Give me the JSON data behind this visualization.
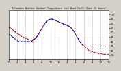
{
  "title": "Milwaukee Weather Outdoor Temperature (vs) Wind Chill (Last 24 Hours)",
  "background_color": "#d4d0c8",
  "plot_bg_color": "#ffffff",
  "xlim": [
    0,
    24
  ],
  "ylim": [
    20,
    75
  ],
  "yticks": [
    25,
    30,
    35,
    40,
    45,
    50,
    55,
    60,
    65,
    70
  ],
  "grid_color": "#888888",
  "temp_color": "#cc0000",
  "windchill_color": "#0000cc",
  "temp_x": [
    0,
    0.5,
    1,
    1.5,
    2,
    2.5,
    3,
    3.5,
    4,
    4.5,
    5,
    5.5,
    6,
    6.5,
    7,
    7.5,
    8,
    8.5,
    9,
    9.5,
    10,
    10.5,
    11,
    11.5,
    12,
    12.5,
    13,
    13.5,
    14,
    14.5,
    15,
    15.5,
    16,
    16.5,
    17,
    17.5,
    18,
    18.5,
    19,
    19.5,
    20,
    20.5,
    21,
    21.5,
    22,
    22.5,
    23,
    23.5,
    24
  ],
  "temp_y": [
    56,
    55,
    53,
    51,
    49,
    48,
    46,
    45,
    44,
    43,
    42,
    41,
    42,
    44,
    47,
    51,
    55,
    59,
    62,
    64,
    65,
    65,
    64,
    63,
    62,
    61,
    60,
    59,
    58,
    57,
    55,
    52,
    48,
    44,
    40,
    37,
    35,
    33,
    31,
    30,
    29,
    28,
    28,
    27,
    27,
    26,
    26,
    26,
    26
  ],
  "wc_x": [
    0,
    0.5,
    1,
    1.5,
    2,
    2.5,
    3,
    3.5,
    4,
    4.5,
    5,
    5.5,
    6,
    6.5,
    7,
    7.5,
    8,
    8.5,
    9,
    9.5,
    10,
    10.5,
    11,
    11.5,
    12,
    12.5,
    13,
    13.5,
    14,
    14.5,
    15,
    15.5,
    16,
    16.5,
    17,
    17.5,
    18,
    18.5,
    19,
    19.5,
    20,
    20.5,
    21,
    21.5,
    22,
    22.5,
    23,
    23.5,
    24
  ],
  "wc_y": [
    48,
    47,
    45,
    43,
    41,
    40,
    40,
    40,
    40,
    40,
    40,
    40,
    42,
    44,
    47,
    51,
    55,
    59,
    62,
    64,
    65,
    65,
    64,
    63,
    62,
    61,
    60,
    59,
    58,
    57,
    55,
    52,
    48,
    44,
    40,
    37,
    35,
    35,
    35,
    35,
    35,
    35,
    35,
    35,
    35,
    35,
    35,
    35,
    35
  ],
  "xtick_positions": [
    0,
    2,
    4,
    6,
    8,
    10,
    12,
    14,
    16,
    18,
    20,
    22,
    24
  ],
  "xtick_labels": [
    "12",
    "2",
    "4",
    "6",
    "8",
    "10",
    "12",
    "2",
    "4",
    "6",
    "8",
    "10",
    "12"
  ],
  "vgrid_positions": [
    2,
    4,
    6,
    8,
    10,
    12,
    14,
    16,
    18,
    20,
    22
  ]
}
